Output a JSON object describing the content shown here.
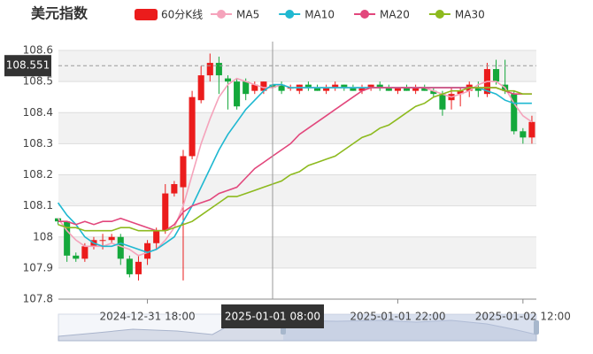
{
  "chart_data": {
    "type": "candlestick",
    "title": "美元指数",
    "categories": [
      null,
      null,
      null,
      null,
      null,
      null,
      null,
      null,
      null,
      null,
      "2024-12-31 18:00",
      null,
      null,
      null,
      null,
      null,
      null,
      null,
      null,
      null,
      null,
      null,
      null,
      null,
      "2025-01-01 08:00",
      null,
      null,
      null,
      null,
      null,
      null,
      null,
      null,
      null,
      null,
      null,
      null,
      null,
      "2025-01-01 22:00",
      null,
      null,
      null,
      null,
      null,
      null,
      null,
      null,
      null,
      null,
      null,
      null,
      null,
      "2025-01-02 12:00",
      null
    ],
    "candles": {
      "name": "60分K线",
      "up_color": "#eb1c1c",
      "down_color": "#14a83b",
      "open": [
        108.06,
        108.05,
        107.94,
        107.93,
        107.97,
        107.99,
        107.99,
        108.0,
        107.93,
        107.88,
        107.93,
        107.98,
        108.02,
        108.14,
        108.16,
        108.26,
        108.44,
        108.52,
        108.56,
        108.51,
        108.5,
        108.5,
        108.47,
        108.47,
        108.49,
        108.49,
        108.48,
        108.47,
        108.49,
        108.48,
        108.47,
        108.48,
        108.49,
        108.48,
        108.47,
        108.48,
        108.49,
        108.48,
        108.47,
        108.48,
        108.47,
        108.48,
        108.47,
        108.46,
        108.44,
        108.46,
        108.47,
        108.48,
        108.46,
        108.54,
        108.49,
        108.46,
        108.34,
        108.32
      ],
      "high": [
        108.06,
        108.05,
        107.95,
        107.98,
        108.0,
        108.01,
        108.01,
        108.01,
        107.94,
        107.94,
        107.99,
        108.03,
        108.17,
        108.18,
        108.28,
        108.47,
        108.55,
        108.59,
        108.58,
        108.52,
        108.51,
        108.51,
        108.5,
        108.5,
        108.5,
        108.5,
        108.49,
        108.49,
        108.5,
        108.49,
        108.49,
        108.5,
        108.49,
        108.49,
        108.49,
        108.49,
        108.5,
        108.49,
        108.48,
        108.49,
        108.49,
        108.49,
        108.48,
        108.47,
        108.48,
        108.48,
        108.5,
        108.5,
        108.56,
        108.57,
        108.57,
        108.47,
        108.35,
        108.39
      ],
      "low": [
        108.04,
        107.92,
        107.92,
        107.92,
        107.96,
        107.96,
        107.98,
        107.91,
        107.87,
        107.86,
        107.91,
        107.96,
        108.01,
        108.13,
        107.86,
        108.25,
        108.43,
        108.5,
        108.46,
        108.41,
        108.41,
        108.44,
        108.46,
        108.46,
        108.47,
        108.46,
        108.47,
        108.46,
        108.47,
        108.47,
        108.46,
        108.47,
        108.47,
        108.47,
        108.46,
        108.47,
        108.47,
        108.47,
        108.46,
        108.47,
        108.46,
        108.47,
        108.45,
        108.39,
        108.41,
        108.42,
        108.45,
        108.45,
        108.45,
        108.49,
        108.46,
        108.33,
        108.3,
        108.3
      ],
      "close": [
        108.05,
        107.94,
        107.93,
        107.97,
        107.99,
        107.99,
        108.0,
        107.93,
        107.88,
        107.92,
        107.98,
        108.02,
        108.14,
        108.17,
        108.26,
        108.45,
        108.52,
        108.56,
        108.52,
        108.5,
        108.42,
        108.46,
        108.49,
        108.5,
        108.48,
        108.47,
        108.48,
        108.49,
        108.48,
        108.47,
        108.48,
        108.49,
        108.48,
        108.47,
        108.48,
        108.49,
        108.48,
        108.47,
        108.48,
        108.47,
        108.48,
        108.47,
        108.46,
        108.41,
        108.46,
        108.47,
        108.49,
        108.47,
        108.54,
        108.5,
        108.47,
        108.34,
        108.32,
        108.37
      ]
    },
    "series": [
      {
        "name": "MA5",
        "color": "#f5a3bb",
        "values": [
          108.06,
          108.02,
          107.99,
          107.97,
          107.97,
          107.97,
          107.98,
          107.97,
          107.96,
          107.94,
          107.95,
          107.96,
          107.99,
          108.03,
          108.1,
          108.2,
          108.3,
          108.38,
          108.45,
          108.49,
          108.51,
          108.5,
          108.49,
          108.48,
          108.48,
          108.49,
          108.48,
          108.48,
          108.48,
          108.48,
          108.48,
          108.48,
          108.48,
          108.48,
          108.48,
          108.48,
          108.48,
          108.48,
          108.48,
          108.48,
          108.48,
          108.48,
          108.47,
          108.46,
          108.45,
          108.46,
          108.47,
          108.49,
          108.5,
          108.5,
          108.48,
          108.43,
          108.39,
          108.37
        ]
      },
      {
        "name": "MA10",
        "color": "#1fb8d1",
        "values": [
          108.11,
          108.07,
          108.04,
          108.0,
          107.98,
          107.97,
          107.97,
          107.98,
          107.97,
          107.96,
          107.95,
          107.96,
          107.98,
          108.0,
          108.05,
          108.1,
          108.16,
          108.22,
          108.28,
          108.33,
          108.37,
          108.41,
          108.44,
          108.47,
          108.49,
          108.49,
          108.48,
          108.48,
          108.48,
          108.48,
          108.48,
          108.48,
          108.48,
          108.48,
          108.48,
          108.48,
          108.48,
          108.48,
          108.48,
          108.48,
          108.48,
          108.48,
          108.48,
          108.48,
          108.48,
          108.48,
          108.48,
          108.48,
          108.47,
          108.46,
          108.44,
          108.43,
          108.43,
          108.43
        ]
      },
      {
        "name": "MA20",
        "color": "#e2477c",
        "values": [
          108.05,
          108.05,
          108.04,
          108.05,
          108.04,
          108.05,
          108.05,
          108.06,
          108.05,
          108.04,
          108.03,
          108.02,
          108.02,
          108.04,
          108.08,
          108.1,
          108.11,
          108.12,
          108.14,
          108.15,
          108.16,
          108.19,
          108.22,
          108.24,
          108.26,
          108.28,
          108.3,
          108.33,
          108.35,
          108.37,
          108.39,
          108.41,
          108.43,
          108.45,
          108.47,
          108.48,
          108.48,
          108.48,
          108.48,
          108.48,
          108.48,
          108.48,
          108.48,
          108.48,
          108.48,
          108.48,
          108.48,
          108.48,
          108.48,
          108.48,
          108.47,
          108.46,
          108.46,
          108.46
        ]
      },
      {
        "name": "MA30",
        "color": "#8dba1e",
        "values": [
          108.04,
          108.03,
          108.03,
          108.02,
          108.02,
          108.02,
          108.02,
          108.03,
          108.03,
          108.02,
          108.02,
          108.02,
          108.02,
          108.03,
          108.04,
          108.05,
          108.07,
          108.09,
          108.11,
          108.13,
          108.13,
          108.14,
          108.15,
          108.16,
          108.17,
          108.18,
          108.2,
          108.21,
          108.23,
          108.24,
          108.25,
          108.26,
          108.28,
          108.3,
          108.32,
          108.33,
          108.35,
          108.36,
          108.38,
          108.4,
          108.42,
          108.43,
          108.45,
          108.46,
          108.47,
          108.47,
          108.48,
          108.48,
          108.48,
          108.48,
          108.47,
          108.47,
          108.46,
          108.46
        ]
      }
    ],
    "ylim": [
      107.8,
      108.6
    ],
    "yticks": [
      107.8,
      107.9,
      108,
      108.1,
      108.2,
      108.3,
      108.4,
      108.5,
      108.6
    ],
    "grid": true,
    "crosshair": {
      "x": "2025-01-01 08:00",
      "y": 108.551
    }
  }
}
